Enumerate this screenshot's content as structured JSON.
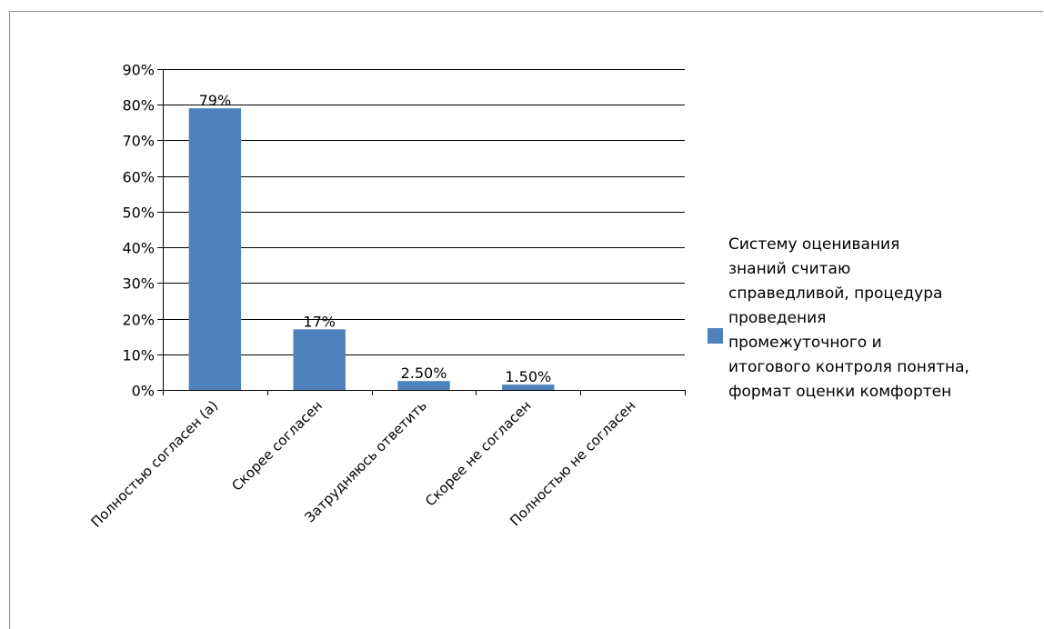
{
  "chart_data": {
    "type": "bar",
    "categories": [
      "Полностью согласен (а)",
      "Скорее согласен",
      "Затрудняюсь ответить",
      "Скорее не согласен",
      "Полностью не согласен"
    ],
    "series": [
      {
        "name": " Систему оценивания\nзнаний  считаю\nсправедливой, процедура\nпроведения\nпромежуточного  и\nитогового контроля понятна,\nформат оценки комфортен",
        "values": [
          79,
          17,
          2.5,
          1.5,
          0
        ],
        "data_labels": [
          "79%",
          "17%",
          "2.50%",
          "1.50%",
          ""
        ]
      }
    ],
    "y_ticks": [
      "0%",
      "10%",
      "20%",
      "30%",
      "40%",
      "50%",
      "60%",
      "70%",
      "80%",
      "90%"
    ],
    "ylim": [
      0,
      90
    ],
    "grid": true,
    "legend": "right",
    "colors": {
      "bar": "#4f81bd",
      "grid": "#000000"
    }
  }
}
